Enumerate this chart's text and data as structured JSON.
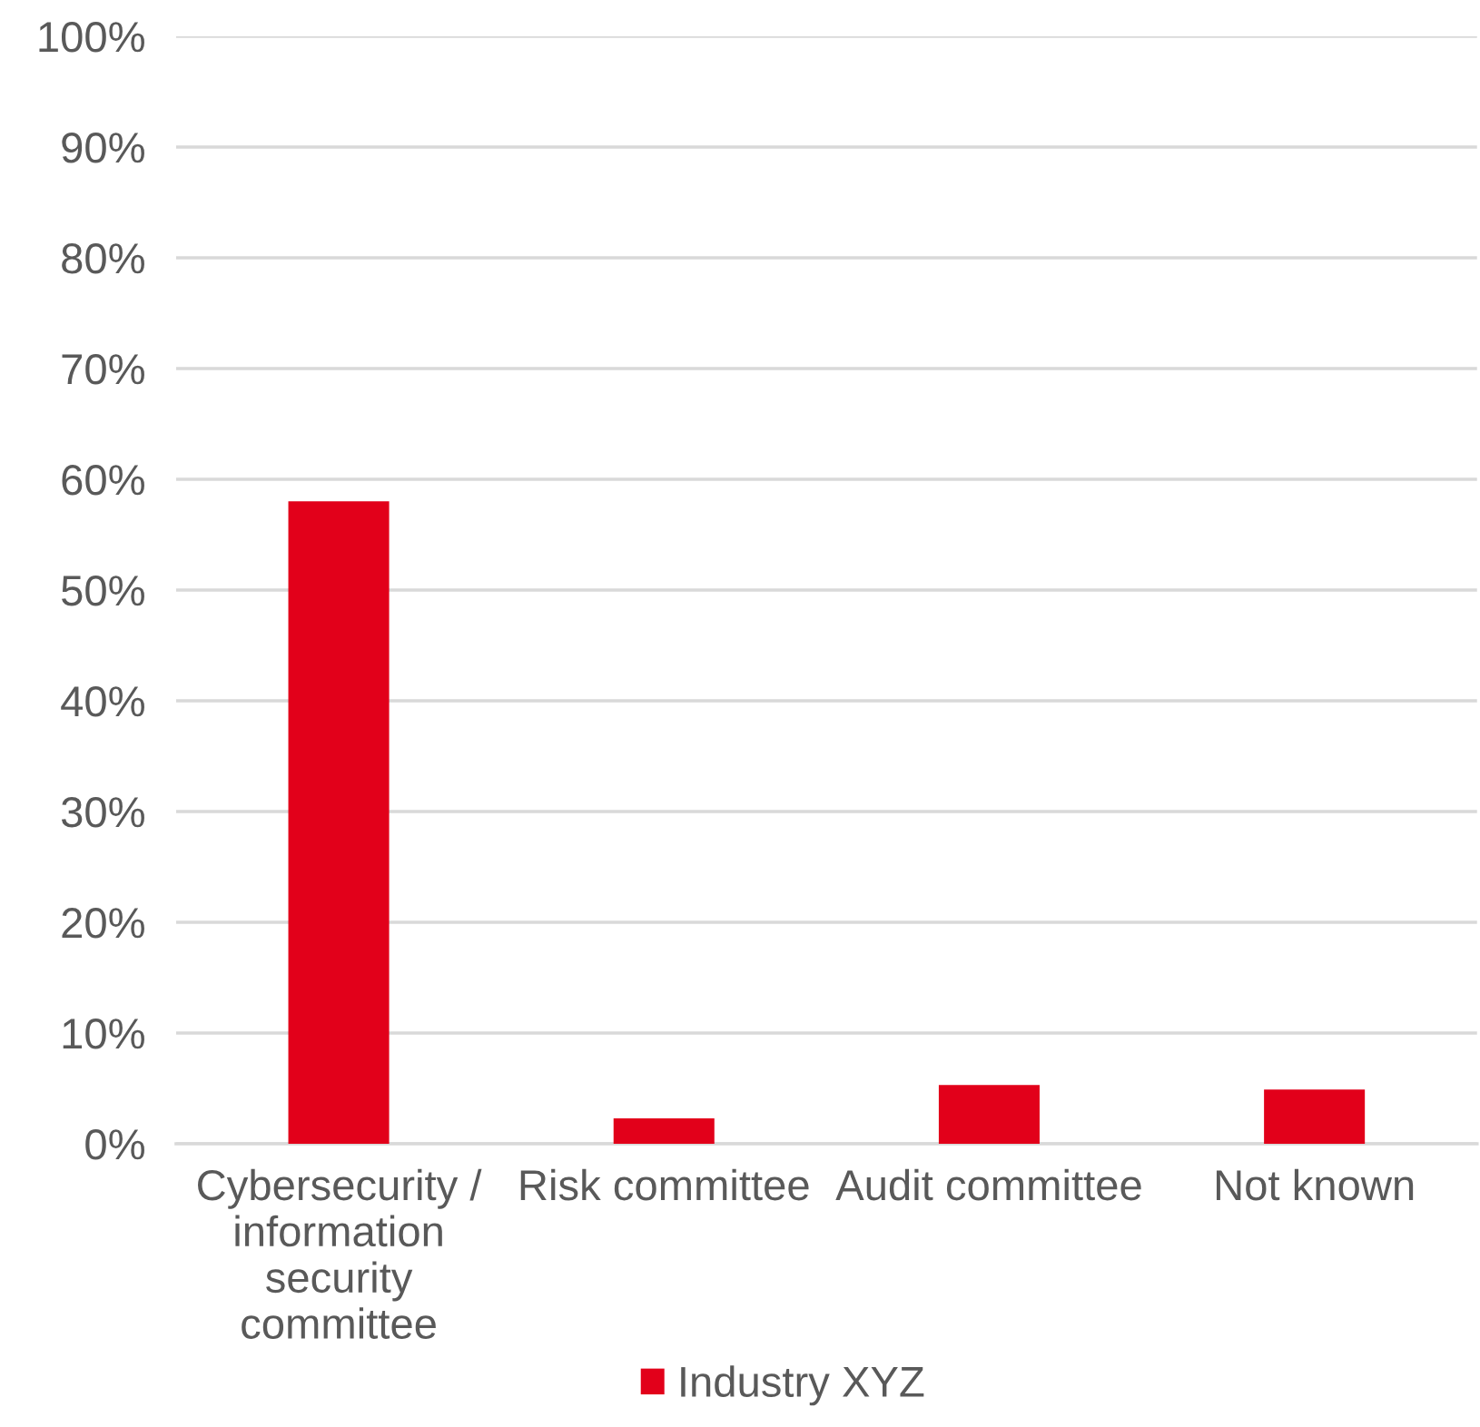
{
  "chart_data": {
    "type": "bar",
    "categories": [
      "Cybersecurity / information security committee",
      "Risk committee",
      "Audit committee",
      "Not known"
    ],
    "series": [
      {
        "name": "Industry XYZ",
        "color": "#e2001a",
        "values": [
          58,
          2.3,
          5.3,
          4.9
        ]
      }
    ],
    "ylim": [
      0,
      100
    ],
    "yticks": [
      {
        "value": 0,
        "label": "0%"
      },
      {
        "value": 10,
        "label": "10%"
      },
      {
        "value": 20,
        "label": "20%"
      },
      {
        "value": 30,
        "label": "30%"
      },
      {
        "value": 40,
        "label": "40%"
      },
      {
        "value": 50,
        "label": "50%"
      },
      {
        "value": 60,
        "label": "60%"
      },
      {
        "value": 70,
        "label": "70%"
      },
      {
        "value": 80,
        "label": "80%"
      },
      {
        "value": 90,
        "label": "90%"
      },
      {
        "value": 100,
        "label": "100%"
      }
    ],
    "grid": "y",
    "legend": "bottom"
  }
}
